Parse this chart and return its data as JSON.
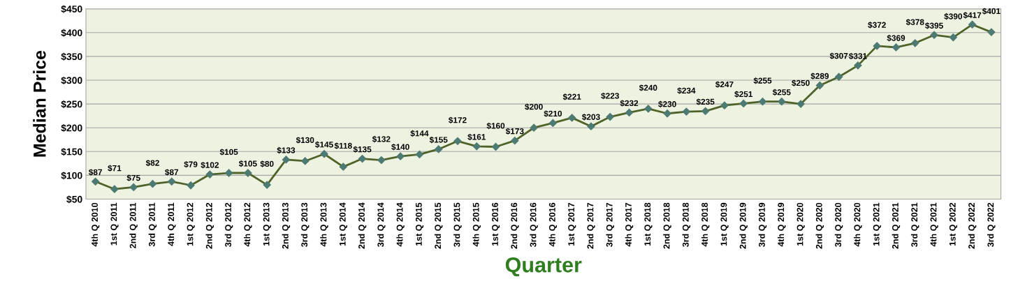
{
  "chart_data": {
    "type": "line",
    "xlabel": "Quarter",
    "ylabel": "Median Price",
    "categories": [
      "4th Q 2010",
      "1st Q 2011",
      "2nd Q 2011",
      "3rd Q 2011",
      "4th Q 2011",
      "1st Q 2012",
      "2nd Q 2012",
      "3rd Q 2012",
      "4th Q 2012",
      "1st Q 2013",
      "2nd Q 2013",
      "3rd Q 2013",
      "4th Q 2013",
      "1st Q 2014",
      "2nd Q 2014",
      "3rd Q 2014",
      "4th Q 2014",
      "1st Q 2015",
      "2nd Q 2015",
      "3rd Q 2015",
      "4th Q 2015",
      "1st Q 2016",
      "2nd Q 2016",
      "3rd Q 2016",
      "4th Q 2016",
      "1st Q 2017",
      "2nd Q 2017",
      "3rd Q 2017",
      "4th Q 2017",
      "1st Q 2018",
      "2nd Q 2018",
      "3rd Q 2018",
      "4th Q 2018",
      "1st Q 2019",
      "2nd Q 2019",
      "3rd Q 2019",
      "4th Q 2019",
      "1st Q 2020",
      "2nd Q 2020",
      "3rd Q 2020",
      "4th Q 2020",
      "1st Q 2021",
      "2nd Q 2021",
      "3rd Q 2021",
      "4th Q 2021",
      "1st Q 2022",
      "2nd Q 2022",
      "3rd Q 2022"
    ],
    "series": [
      {
        "color": "#4f6228",
        "values": [
          87,
          71,
          75,
          82,
          87,
          79,
          102,
          105,
          105,
          80,
          133,
          130,
          145,
          118,
          135,
          132,
          140,
          144,
          155,
          172,
          161,
          160,
          173,
          200,
          210,
          221,
          203,
          223,
          232,
          240,
          230,
          234,
          235,
          247,
          251,
          255,
          255,
          250,
          289,
          307,
          331,
          372,
          369,
          378,
          395,
          390,
          417,
          401
        ],
        "value_labels": [
          "$87",
          "$71",
          "$75",
          "$82",
          "$87",
          "$79",
          "$102",
          "$105",
          "$105",
          "$80",
          "$133",
          "$130",
          "$145",
          "$118",
          "$135",
          "$132",
          "$140",
          "$144",
          "$155",
          "$172",
          "$161",
          "$160",
          "$173",
          "$200",
          "$210",
          "$221",
          "$203",
          "$223",
          "$232",
          "$240",
          "$230",
          "$234",
          "$235",
          "$247",
          "$251",
          "$255",
          "$255",
          "$250",
          "$289",
          "$307",
          "$331",
          "$372",
          "$369",
          "$378",
          "$395",
          "$390",
          "$417",
          "$401"
        ]
      }
    ],
    "ylim": [
      50,
      450
    ],
    "yticks": [
      {
        "value": 50,
        "label": "$50"
      },
      {
        "value": 100,
        "label": "$100"
      },
      {
        "value": 150,
        "label": "$150"
      },
      {
        "value": 200,
        "label": "$200"
      },
      {
        "value": 250,
        "label": "$250"
      },
      {
        "value": 300,
        "label": "$300"
      },
      {
        "value": 350,
        "label": "$350"
      },
      {
        "value": 400,
        "label": "$400"
      },
      {
        "value": 450,
        "label": "$450"
      }
    ],
    "grid": "y",
    "marker": "diamond",
    "line_style": "solid"
  }
}
